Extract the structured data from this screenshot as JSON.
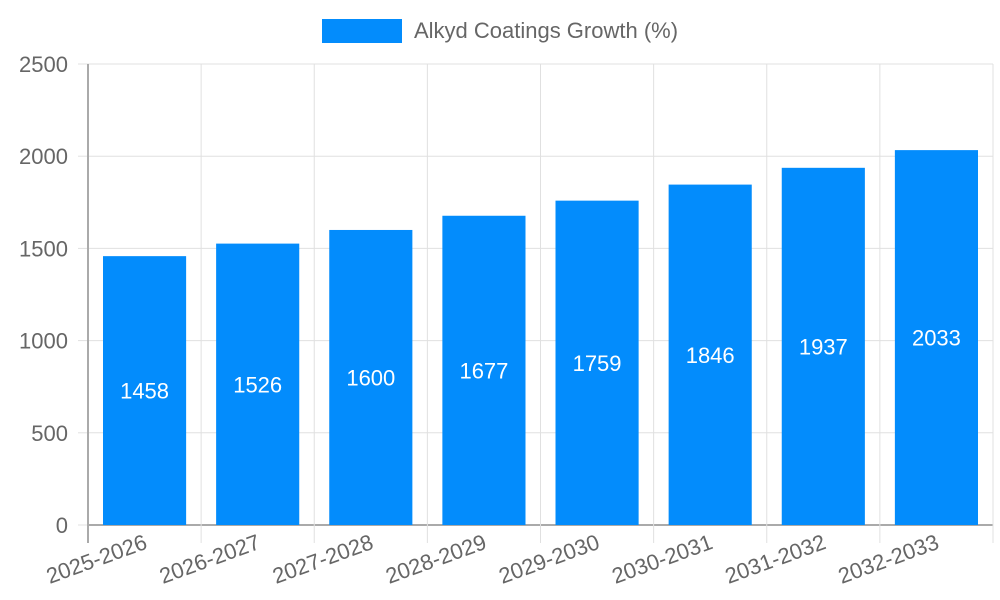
{
  "chart_data": {
    "type": "bar",
    "title": "",
    "xlabel": "",
    "ylabel": "",
    "legend": [
      "Alkyd Coatings Growth (%)"
    ],
    "legend_position": "top",
    "grid": true,
    "ylim": [
      0,
      2500
    ],
    "yticks": [
      0,
      500,
      1000,
      1500,
      2000,
      2500
    ],
    "categories": [
      "2025-2026",
      "2026-2027",
      "2027-2028",
      "2028-2029",
      "2029-2030",
      "2030-2031",
      "2031-2032",
      "2032-2033"
    ],
    "series": [
      {
        "name": "Alkyd Coatings Growth (%)",
        "color": "#038cfc",
        "values": [
          1458,
          1526,
          1600,
          1677,
          1759,
          1846,
          1937,
          2033
        ]
      }
    ]
  },
  "colors": {
    "bar": "#038cfc",
    "grid": "#e0e0e0",
    "axis": "#aaaaaa",
    "text": "#666666",
    "bar_label": "#ffffff"
  }
}
